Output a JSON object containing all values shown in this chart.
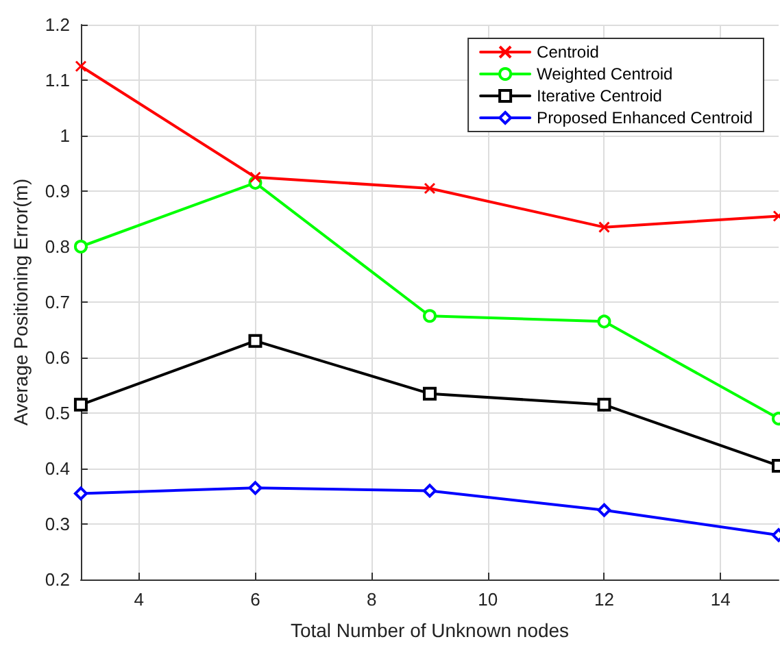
{
  "chart_data": {
    "type": "line",
    "xlabel": "Total Number of Unknown nodes",
    "ylabel": "Average Positioning Error(m)",
    "x": [
      3,
      6,
      9,
      12,
      15
    ],
    "xlim": [
      3,
      15
    ],
    "xticks": [
      4,
      6,
      8,
      10,
      12,
      14
    ],
    "ylim": [
      0.2,
      1.2
    ],
    "yticks": [
      0.2,
      0.3,
      0.4,
      0.5,
      0.6,
      0.7,
      0.8,
      0.9,
      1,
      1.1,
      1.2
    ],
    "grid": true,
    "legend": "top right",
    "line_style": "solid",
    "series": [
      {
        "name": "Centroid",
        "color": "#ff0000",
        "marker": "cross",
        "values": [
          1.125,
          0.925,
          0.905,
          0.835,
          0.855
        ]
      },
      {
        "name": "Weighted Centroid",
        "color": "#00ff00",
        "marker": "circle",
        "values": [
          0.8,
          0.915,
          0.675,
          0.665,
          0.49
        ]
      },
      {
        "name": "Iterative Centroid",
        "color": "#000000",
        "marker": "square",
        "values": [
          0.515,
          0.63,
          0.535,
          0.515,
          0.405
        ]
      },
      {
        "name": "Proposed Enhanced Centroid",
        "color": "#0000ff",
        "marker": "diamond",
        "values": [
          0.355,
          0.365,
          0.36,
          0.325,
          0.28
        ]
      }
    ]
  }
}
